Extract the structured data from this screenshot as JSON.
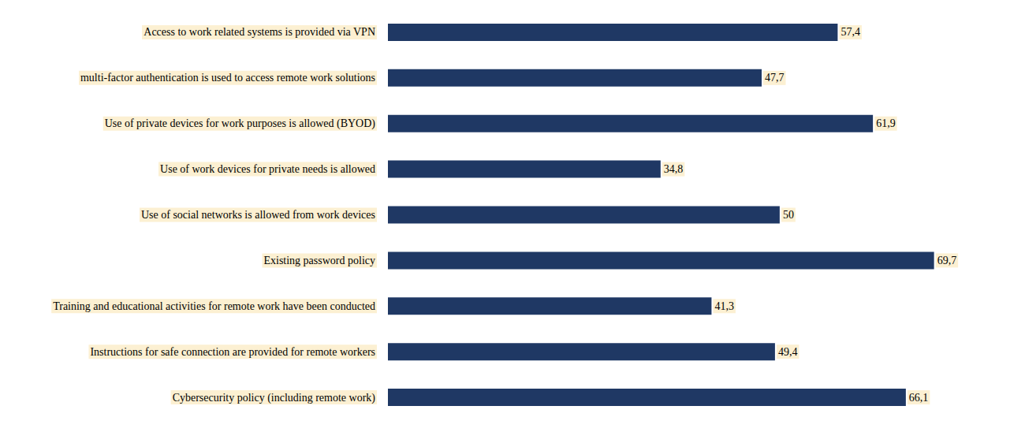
{
  "chart_data": {
    "type": "bar",
    "orientation": "horizontal",
    "categories": [
      "Access to work related systems is provided via VPN",
      "multi-factor authentication is used to access remote work solutions",
      "Use of private devices for work purposes is allowed (BYOD)",
      "Use of work devices for private needs is allowed",
      "Use of social networks is allowed from work devices",
      "Existing password policy",
      "Training and educational activities for remote work have been conducted",
      "Instructions for safe connection are provided for remote workers",
      "Cybersecurity policy (including remote work)"
    ],
    "values": [
      57.4,
      47.7,
      61.9,
      34.8,
      50,
      69.7,
      41.3,
      49.4,
      66.1
    ],
    "value_labels": [
      "57,4",
      "47,7",
      "61,9",
      "34,8",
      "50",
      "69,7",
      "41,3",
      "49,4",
      "66,1"
    ],
    "color": "#1f3864",
    "xlim": [
      0,
      80
    ],
    "grid": false,
    "data_labels": true,
    "tick_labels": "y"
  }
}
